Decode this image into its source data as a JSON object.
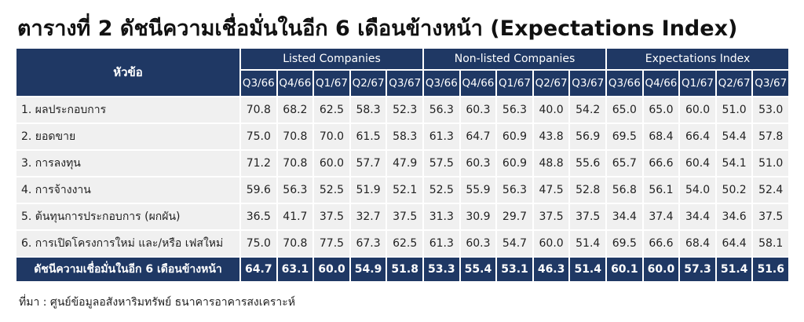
{
  "title": "ตารางที่ 2 ดัชนีความเชื่อมั่นในอีก 6 เดือนข้างหน้า (Expectations Index)",
  "table": {
    "header": {
      "topic": "หัวข้อ",
      "groups": [
        {
          "name": "Listed Companies",
          "periods": [
            "Q3/66",
            "Q4/66",
            "Q1/67",
            "Q2/67",
            "Q3/67"
          ]
        },
        {
          "name": "Non-listed Companies",
          "periods": [
            "Q3/66",
            "Q4/66",
            "Q1/67",
            "Q2/67",
            "Q3/67"
          ]
        },
        {
          "name": "Expectations Index",
          "periods": [
            "Q3/66",
            "Q4/66",
            "Q1/67",
            "Q2/67",
            "Q3/67"
          ]
        }
      ]
    },
    "rows": [
      {
        "label": "1. ผลประกอบการ",
        "values": [
          "70.8",
          "68.2",
          "62.5",
          "58.3",
          "52.3",
          "56.3",
          "60.3",
          "56.3",
          "40.0",
          "54.2",
          "65.0",
          "65.0",
          "60.0",
          "51.0",
          "53.0"
        ]
      },
      {
        "label": "2. ยอดขาย",
        "values": [
          "75.0",
          "70.8",
          "70.0",
          "61.5",
          "58.3",
          "61.3",
          "64.7",
          "60.9",
          "43.8",
          "56.9",
          "69.5",
          "68.4",
          "66.4",
          "54.4",
          "57.8"
        ]
      },
      {
        "label": "3. การลงทุน",
        "values": [
          "71.2",
          "70.8",
          "60.0",
          "57.7",
          "47.9",
          "57.5",
          "60.3",
          "60.9",
          "48.8",
          "55.6",
          "65.7",
          "66.6",
          "60.4",
          "54.1",
          "51.0"
        ]
      },
      {
        "label": "4. การจ้างงาน",
        "values": [
          "59.6",
          "56.3",
          "52.5",
          "51.9",
          "52.1",
          "52.5",
          "55.9",
          "56.3",
          "47.5",
          "52.8",
          "56.8",
          "56.1",
          "54.0",
          "50.2",
          "52.4"
        ]
      },
      {
        "label": "5. ต้นทุนการประกอบการ (ผกผัน)",
        "values": [
          "36.5",
          "41.7",
          "37.5",
          "32.7",
          "37.5",
          "31.3",
          "30.9",
          "29.7",
          "37.5",
          "37.5",
          "34.4",
          "37.4",
          "34.4",
          "34.6",
          "37.5"
        ]
      },
      {
        "label": "6. การเปิดโครงการใหม่ และ/หรือ เฟสใหม่",
        "values": [
          "75.0",
          "70.8",
          "77.5",
          "67.3",
          "62.5",
          "61.3",
          "60.3",
          "54.7",
          "60.0",
          "51.4",
          "69.5",
          "66.6",
          "68.4",
          "64.4",
          "58.1"
        ]
      }
    ],
    "total": {
      "label": "ดัชนีความเชื่อมั่นในอีก 6 เดือนข้างหน้า",
      "values": [
        "64.7",
        "63.1",
        "60.0",
        "54.9",
        "51.8",
        "53.3",
        "55.4",
        "53.1",
        "46.3",
        "51.4",
        "60.1",
        "60.0",
        "57.3",
        "51.4",
        "51.6"
      ]
    }
  },
  "source": "ที่มา : ศูนย์ข้อมูลอสังหาริมทรัพย์ ธนาคารอาคารสงเคราะห์"
}
